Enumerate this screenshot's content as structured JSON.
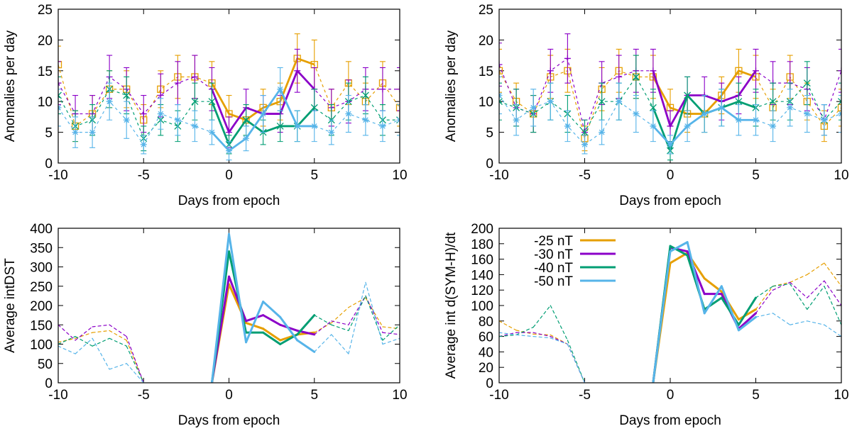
{
  "chart_data": [
    {
      "type": "line",
      "panel": "top-left",
      "xlabel": "Days from epoch",
      "ylabel": "Anomalies per day",
      "xlim": [
        -10,
        10
      ],
      "ylim": [
        0,
        25
      ],
      "xticks": [
        -10,
        -5,
        0,
        5,
        10
      ],
      "yticks": [
        0,
        5,
        10,
        15,
        20,
        25
      ],
      "error_bars": true,
      "series": [
        {
          "name": "-25 nT",
          "color": "#E69F00",
          "marker": "square",
          "x": [
            -10,
            -9,
            -8,
            -7,
            -6,
            -5,
            -4,
            -3,
            -2,
            -1,
            0,
            1,
            2,
            3,
            4,
            5,
            6,
            7,
            8,
            9,
            10
          ],
          "y": [
            16,
            6,
            8,
            12,
            12,
            7,
            12,
            14,
            14,
            13,
            8,
            7,
            9,
            10,
            17,
            16,
            9,
            13,
            10,
            13,
            9
          ],
          "err": [
            3,
            2.5,
            3,
            3,
            3,
            2.5,
            3,
            3.5,
            3.5,
            3.5,
            3,
            2.5,
            3,
            3,
            4,
            4,
            3,
            3.5,
            3,
            3.5,
            3
          ]
        },
        {
          "name": "-30 nT",
          "color": "#8B00C8",
          "marker": "plus",
          "x": [
            -10,
            -9,
            -8,
            -7,
            -6,
            -5,
            -4,
            -3,
            -2,
            -1,
            0,
            1,
            2,
            3,
            4,
            5,
            6,
            7,
            8,
            9,
            10
          ],
          "y": [
            13,
            8,
            8,
            14,
            12,
            8,
            11,
            13,
            14,
            12,
            5,
            9,
            8,
            8,
            15,
            12,
            9,
            10,
            12,
            12,
            12
          ],
          "err": [
            3.5,
            3,
            3,
            3.5,
            3.5,
            3,
            3.5,
            3.5,
            3.5,
            3.5,
            2.5,
            3,
            3,
            3,
            3.5,
            3.5,
            3,
            3.5,
            3.5,
            3.5,
            3.5
          ]
        },
        {
          "name": "-40 nT",
          "color": "#009E73",
          "marker": "x",
          "x": [
            -10,
            -9,
            -8,
            -7,
            -6,
            -5,
            -4,
            -3,
            -2,
            -1,
            0,
            1,
            2,
            3,
            4,
            5,
            6,
            7,
            8,
            9,
            10
          ],
          "y": [
            11,
            6,
            7,
            12,
            11,
            4,
            7,
            6,
            10,
            10,
            3,
            7,
            5,
            6,
            6,
            9,
            7,
            10,
            11,
            7,
            7
          ],
          "err": [
            3,
            2.5,
            2.5,
            3,
            3,
            2,
            2.5,
            2.5,
            3,
            3,
            1.5,
            2.5,
            2,
            2.5,
            2.5,
            3,
            2.5,
            3,
            3,
            2.5,
            2.5
          ]
        },
        {
          "name": "-50 nT",
          "color": "#56B4E9",
          "marker": "star",
          "x": [
            -10,
            -9,
            -8,
            -7,
            -6,
            -5,
            -4,
            -3,
            -2,
            -1,
            0,
            1,
            2,
            3,
            4,
            5,
            6,
            7,
            8,
            9,
            10
          ],
          "y": [
            9,
            5,
            5,
            10,
            7,
            3,
            8,
            7,
            6,
            5,
            2,
            4,
            8,
            12,
            6,
            6,
            5,
            8,
            7,
            6,
            7
          ],
          "err": [
            3,
            2.5,
            2.5,
            3,
            3,
            1.5,
            2.5,
            2.5,
            2.5,
            2,
            1.5,
            2,
            3,
            3.5,
            2.5,
            2.5,
            2,
            3,
            2.5,
            2.5,
            2.5
          ]
        }
      ]
    },
    {
      "type": "line",
      "panel": "top-right",
      "xlabel": "Days from epoch",
      "ylabel": "Anomalies per day",
      "xlim": [
        -10,
        10
      ],
      "ylim": [
        0,
        25
      ],
      "xticks": [
        -10,
        -5,
        0,
        5,
        10
      ],
      "yticks": [
        0,
        5,
        10,
        15,
        20,
        25
      ],
      "error_bars": true,
      "series": [
        {
          "name": "-25 nT",
          "color": "#E69F00",
          "marker": "square",
          "x": [
            -10,
            -9,
            -8,
            -7,
            -6,
            -5,
            -4,
            -3,
            -2,
            -1,
            0,
            1,
            2,
            3,
            4,
            5,
            6,
            7,
            8,
            9,
            10
          ],
          "y": [
            15,
            10,
            8,
            14,
            15,
            4,
            12,
            15,
            14,
            14,
            9,
            8,
            8,
            11,
            15,
            14,
            9,
            14,
            10,
            6,
            9
          ],
          "err": [
            3.5,
            3,
            3,
            3.5,
            3.5,
            2,
            3.5,
            3.5,
            3.5,
            3.5,
            3,
            3,
            3,
            3,
            3.5,
            3.5,
            3,
            3.5,
            3,
            2.5,
            3
          ]
        },
        {
          "name": "-30 nT",
          "color": "#8B00C8",
          "marker": "plus",
          "x": [
            -10,
            -9,
            -8,
            -7,
            -6,
            -5,
            -4,
            -3,
            -2,
            -1,
            0,
            1,
            2,
            3,
            4,
            5,
            6,
            7,
            8,
            9,
            10
          ],
          "y": [
            16,
            9,
            8,
            15,
            17,
            5,
            13,
            14,
            15,
            15,
            6,
            11,
            11,
            10,
            11,
            15,
            13,
            13,
            12,
            7,
            15
          ],
          "err": [
            3.5,
            3,
            3,
            3.5,
            4,
            2,
            3.5,
            3.5,
            3.5,
            3.5,
            2.5,
            3,
            3,
            3,
            3,
            3.5,
            3.5,
            3.5,
            3.5,
            2.5,
            3.5
          ]
        },
        {
          "name": "-40 nT",
          "color": "#009E73",
          "marker": "x",
          "x": [
            -10,
            -9,
            -8,
            -7,
            -6,
            -5,
            -4,
            -3,
            -2,
            -1,
            0,
            1,
            2,
            3,
            4,
            5,
            6,
            7,
            8,
            9,
            10
          ],
          "y": [
            10,
            9,
            8,
            10,
            8,
            5,
            10,
            10,
            14,
            9,
            2,
            11,
            8,
            9,
            10,
            9,
            10,
            10,
            13,
            7,
            10
          ],
          "err": [
            3,
            3,
            3,
            3,
            3,
            2,
            3,
            3,
            3.5,
            3,
            1.5,
            3,
            3,
            3,
            3,
            3,
            3,
            3,
            3.5,
            2.5,
            3
          ]
        },
        {
          "name": "-50 nT",
          "color": "#56B4E9",
          "marker": "star",
          "x": [
            -10,
            -9,
            -8,
            -7,
            -6,
            -5,
            -4,
            -3,
            -2,
            -1,
            0,
            1,
            2,
            3,
            4,
            5,
            6,
            7,
            8,
            9,
            10
          ],
          "y": [
            11,
            7,
            9,
            10,
            6,
            3,
            5,
            10,
            8,
            6,
            3,
            6,
            8,
            9,
            7,
            7,
            6,
            9,
            8,
            7,
            8
          ],
          "err": [
            3,
            2.5,
            3,
            3,
            2.5,
            1.5,
            2,
            3,
            3,
            2.5,
            1.5,
            2.5,
            3,
            3,
            2.5,
            2.5,
            2.5,
            3,
            3,
            2.5,
            3
          ]
        }
      ]
    },
    {
      "type": "line",
      "panel": "bottom-left",
      "xlabel": "Days from epoch",
      "ylabel": "Average intDST",
      "xlim": [
        -10,
        10
      ],
      "ylim": [
        0,
        400
      ],
      "xticks": [
        -10,
        -5,
        0,
        5,
        10
      ],
      "yticks": [
        0,
        50,
        100,
        150,
        200,
        250,
        300,
        350,
        400
      ],
      "solid_range": [
        -1,
        5
      ],
      "series": [
        {
          "name": "-25 nT",
          "color": "#E69F00",
          "x": [
            -10,
            -9,
            -8,
            -7,
            -6,
            -5,
            -4,
            -3,
            -2,
            -1,
            0,
            1,
            2,
            3,
            4,
            5,
            6,
            7,
            8,
            9,
            10
          ],
          "y": [
            105,
            115,
            130,
            135,
            110,
            0,
            null,
            null,
            null,
            0,
            255,
            155,
            140,
            110,
            125,
            130,
            155,
            195,
            220,
            145,
            140
          ]
        },
        {
          "name": "-30 nT",
          "color": "#8B00C8",
          "x": [
            -10,
            -9,
            -8,
            -7,
            -6,
            -5,
            -4,
            -3,
            -2,
            -1,
            0,
            1,
            2,
            3,
            4,
            5,
            6,
            7,
            8,
            9,
            10
          ],
          "y": [
            150,
            110,
            145,
            150,
            120,
            0,
            null,
            null,
            null,
            0,
            275,
            160,
            175,
            150,
            135,
            125,
            160,
            150,
            225,
            130,
            125
          ]
        },
        {
          "name": "-40 nT",
          "color": "#009E73",
          "x": [
            -10,
            -9,
            -8,
            -7,
            -6,
            -5,
            -4,
            -3,
            -2,
            -1,
            0,
            1,
            2,
            3,
            4,
            5,
            6,
            7,
            8,
            9,
            10
          ],
          "y": [
            100,
            120,
            95,
            115,
            95,
            0,
            null,
            null,
            null,
            0,
            340,
            130,
            130,
            100,
            125,
            175,
            150,
            135,
            225,
            110,
            150
          ]
        },
        {
          "name": "-50 nT",
          "color": "#56B4E9",
          "x": [
            -10,
            -9,
            -8,
            -7,
            -6,
            -5,
            -4,
            -3,
            -2,
            -1,
            0,
            1,
            2,
            3,
            4,
            5,
            6,
            7,
            8,
            9,
            10
          ],
          "y": [
            95,
            75,
            115,
            35,
            50,
            0,
            null,
            null,
            null,
            0,
            385,
            105,
            210,
            170,
            110,
            80,
            125,
            75,
            260,
            100,
            115
          ]
        }
      ]
    },
    {
      "type": "line",
      "panel": "bottom-right",
      "xlabel": "Days from epoch",
      "ylabel": "Average int d(SYM-H)/dt",
      "xlim": [
        -10,
        10
      ],
      "ylim": [
        0,
        200
      ],
      "xticks": [
        -10,
        -5,
        0,
        5,
        10
      ],
      "yticks": [
        0,
        20,
        40,
        60,
        80,
        100,
        120,
        140,
        160,
        180,
        200
      ],
      "solid_range": [
        -1,
        5
      ],
      "legend": {
        "position": "top-left",
        "entries": [
          "-25 nT",
          "-30 nT",
          "-40 nT",
          "-50 nT"
        ]
      },
      "series": [
        {
          "name": "-25 nT",
          "color": "#E69F00",
          "x": [
            -10,
            -9,
            -8,
            -7,
            -6,
            -5,
            -4,
            -3,
            -2,
            -1,
            0,
            1,
            2,
            3,
            4,
            5,
            6,
            7,
            8,
            9,
            10
          ],
          "y": [
            80,
            68,
            63,
            62,
            50,
            0,
            null,
            null,
            null,
            0,
            155,
            168,
            135,
            118,
            82,
            95,
            125,
            130,
            140,
            155,
            125
          ]
        },
        {
          "name": "-30 nT",
          "color": "#8B00C8",
          "x": [
            -10,
            -9,
            -8,
            -7,
            -6,
            -5,
            -4,
            -3,
            -2,
            -1,
            0,
            1,
            2,
            3,
            4,
            5,
            6,
            7,
            8,
            9,
            10
          ],
          "y": [
            60,
            65,
            65,
            60,
            50,
            0,
            null,
            null,
            null,
            0,
            175,
            170,
            115,
            115,
            70,
            90,
            120,
            130,
            110,
            132,
            100
          ]
        },
        {
          "name": "-40 nT",
          "color": "#009E73",
          "x": [
            -10,
            -9,
            -8,
            -7,
            -6,
            -5,
            -4,
            -3,
            -2,
            -1,
            0,
            1,
            2,
            3,
            4,
            5,
            6,
            7,
            8,
            9,
            10
          ],
          "y": [
            60,
            62,
            72,
            100,
            55,
            0,
            null,
            null,
            null,
            0,
            177,
            165,
            95,
            110,
            75,
            110,
            125,
            128,
            95,
            125,
            75
          ]
        },
        {
          "name": "-50 nT",
          "color": "#56B4E9",
          "x": [
            -10,
            -9,
            -8,
            -7,
            -6,
            -5,
            -4,
            -3,
            -2,
            -1,
            0,
            1,
            2,
            3,
            4,
            5,
            6,
            7,
            8,
            9,
            10
          ],
          "y": [
            65,
            62,
            60,
            58,
            50,
            0,
            null,
            null,
            null,
            0,
            170,
            182,
            90,
            125,
            68,
            85,
            90,
            75,
            80,
            75,
            60
          ]
        }
      ]
    }
  ]
}
